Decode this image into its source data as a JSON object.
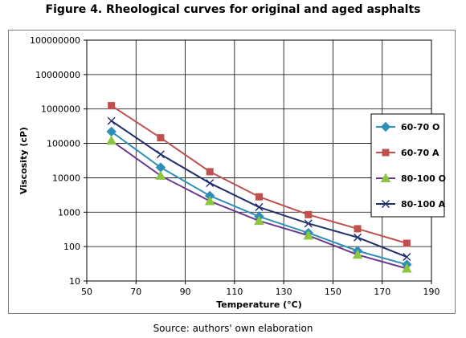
{
  "figure": {
    "title": "Figure 4. Rheological curves for original and aged asphalts",
    "source": "Source: authors' own elaboration"
  },
  "chart_data": {
    "type": "line",
    "xlabel": "Temperature (°C)",
    "ylabel": "Viscosity (cP)",
    "xlim": [
      50,
      190
    ],
    "x_ticks": [
      50,
      70,
      90,
      110,
      130,
      150,
      170,
      190
    ],
    "x_tick_labels": [
      "50",
      "70",
      "90",
      "110",
      "130",
      "150",
      "170",
      "190"
    ],
    "ylim": [
      10,
      100000000
    ],
    "y_scale": "log",
    "y_ticks": [
      10,
      100,
      1000,
      10000,
      100000,
      1000000,
      10000000,
      100000000
    ],
    "y_tick_labels": [
      "10",
      "100",
      "1000",
      "10000",
      "100000",
      "1000000",
      "10000000",
      "100000000"
    ],
    "grid": true,
    "legend_position": "right",
    "x": [
      60,
      80,
      100,
      120,
      140,
      160,
      180
    ],
    "series": [
      {
        "name": "60-70 O",
        "color": "#2e8fb8",
        "marker": "diamond",
        "values": [
          220000,
          20000,
          3000,
          750,
          250,
          75,
          30
        ]
      },
      {
        "name": "60-70 A",
        "color": "#c0504d",
        "marker": "square",
        "values": [
          1250000,
          145000,
          15000,
          2800,
          850,
          330,
          125
        ]
      },
      {
        "name": "80-100 O",
        "color": "#6a3a8e",
        "marker": "triangle",
        "values": [
          120000,
          11500,
          2100,
          560,
          210,
          58,
          23
        ]
      },
      {
        "name": "80-100 A",
        "color": "#1f2d6b",
        "marker": "x",
        "values": [
          450000,
          48000,
          7000,
          1400,
          470,
          185,
          50
        ]
      }
    ]
  }
}
